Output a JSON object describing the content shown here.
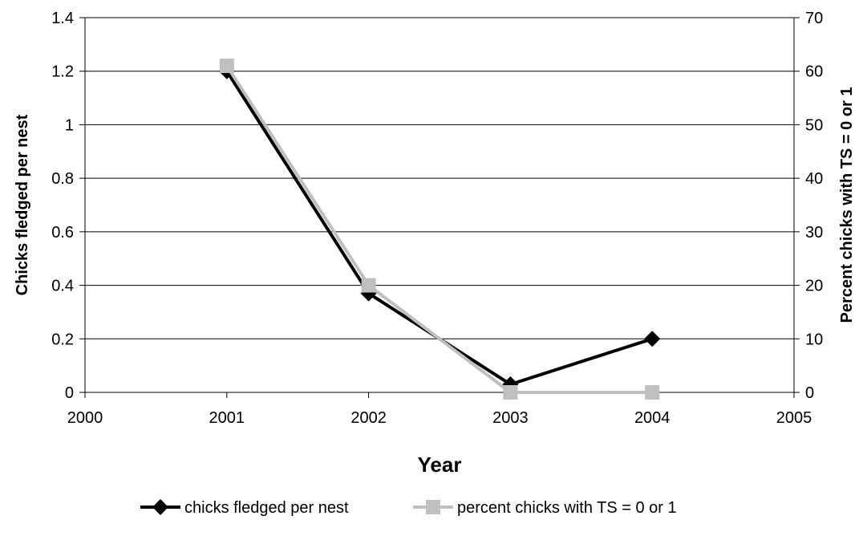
{
  "chart_data": {
    "type": "line",
    "title": "",
    "xlabel": "Year",
    "ylabel": "Chicks fledged per nest",
    "y2label": "Percent chicks with TS = 0 or 1",
    "xlim": [
      2000,
      2005
    ],
    "ylim": [
      0,
      1.4
    ],
    "y2lim": [
      0,
      70
    ],
    "x_ticks": [
      "2000",
      "2001",
      "2002",
      "2003",
      "2004",
      "2005"
    ],
    "y_ticks": [
      "0",
      "0.2",
      "0.4",
      "0.6",
      "0.8",
      "1",
      "1.2",
      "1.4"
    ],
    "y2_ticks": [
      "0",
      "10",
      "20",
      "30",
      "40",
      "50",
      "60",
      "70"
    ],
    "grid": true,
    "legend_position": "bottom",
    "series": [
      {
        "name": "chicks fledged per nest",
        "axis": "left",
        "marker": "diamond",
        "color": "#000000",
        "x": [
          2001,
          2002,
          2003,
          2004
        ],
        "values": [
          1.2,
          0.37,
          0.03,
          0.2
        ]
      },
      {
        "name": "percent chicks with TS = 0 or 1",
        "axis": "right",
        "marker": "square",
        "color": "#bfbfbf",
        "x": [
          2001,
          2002,
          2003,
          2004
        ],
        "values": [
          61,
          20,
          0,
          0
        ]
      }
    ]
  }
}
